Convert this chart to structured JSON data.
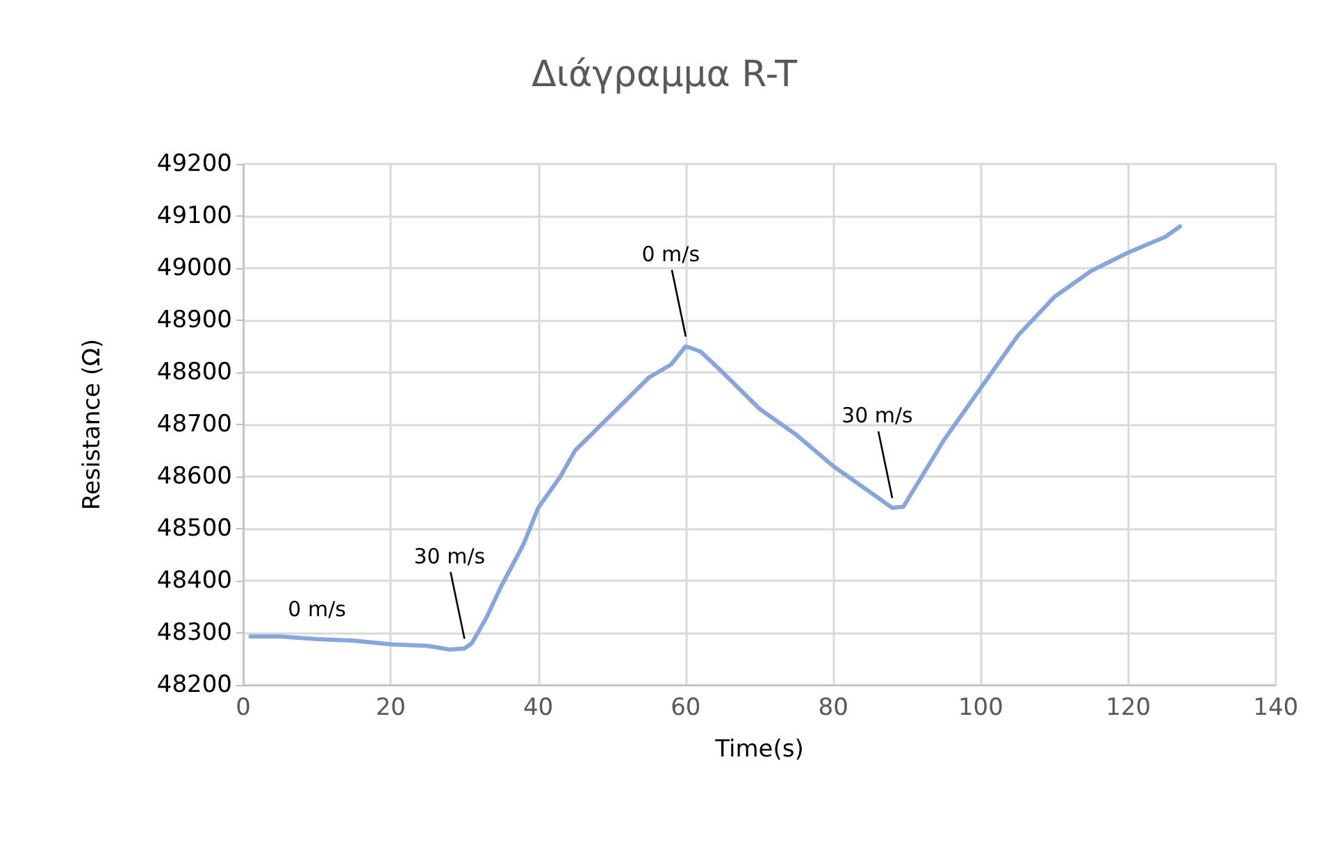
{
  "chart_data": {
    "type": "line",
    "title": "Διάγραμμα R-T",
    "xlabel": "Time(s)",
    "ylabel": "Resistance (Ω)",
    "x": [
      1,
      5,
      10,
      15,
      20,
      25,
      28,
      30,
      31,
      33,
      35,
      38,
      40,
      43,
      45,
      50,
      55,
      58,
      60,
      62,
      65,
      70,
      75,
      80,
      85,
      88,
      89.5,
      92,
      95,
      100,
      105,
      110,
      115,
      120,
      125,
      127
    ],
    "series": [
      {
        "color": "#86a6dc",
        "values": [
          48293,
          48293,
          48288,
          48285,
          48278,
          48275,
          48268,
          48270,
          48280,
          48330,
          48390,
          48470,
          48540,
          48600,
          48650,
          48720,
          48790,
          48815,
          48850,
          48840,
          48800,
          48730,
          48680,
          48620,
          48570,
          48540,
          48542,
          48600,
          48670,
          48770,
          48870,
          48945,
          48995,
          49030,
          49060,
          49080
        ]
      }
    ],
    "xlim": [
      0,
      140
    ],
    "xticks": [
      0,
      20,
      40,
      60,
      80,
      100,
      120,
      140
    ],
    "ylim": [
      48200,
      49200
    ],
    "yticks": [
      48200,
      48300,
      48400,
      48500,
      48600,
      48700,
      48800,
      48900,
      49000,
      49100,
      49200
    ],
    "grid": true,
    "marker": "none",
    "line_style": "solid",
    "annotations": [
      {
        "text": "0 m/s",
        "x": 10,
        "y": 48288
      },
      {
        "text": "30 m/s",
        "x": 30,
        "y": 48270
      },
      {
        "text": "0 m/s",
        "x": 60,
        "y": 48850
      },
      {
        "text": "30 m/s",
        "x": 88,
        "y": 48540
      }
    ]
  }
}
